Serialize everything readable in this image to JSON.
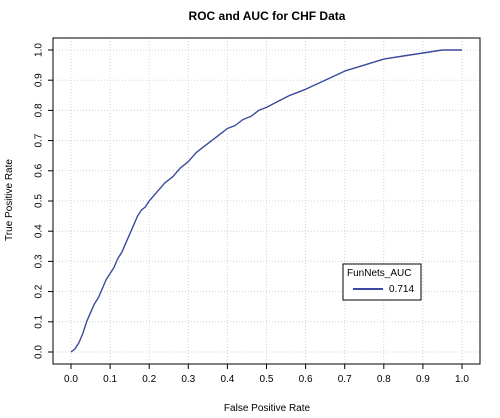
{
  "chart_data": {
    "type": "line",
    "title": "ROC and AUC for CHF Data",
    "xlabel": "False Positive Rate",
    "ylabel": "True Positive Rate",
    "xlim": [
      0.0,
      1.0
    ],
    "ylim": [
      0.0,
      1.0
    ],
    "x_ticks": [
      "0.0",
      "0.1",
      "0.2",
      "0.3",
      "0.4",
      "0.5",
      "0.6",
      "0.7",
      "0.8",
      "0.9",
      "1.0"
    ],
    "y_ticks": [
      "0.0",
      "0.1",
      "0.2",
      "0.3",
      "0.4",
      "0.5",
      "0.6",
      "0.7",
      "0.8",
      "0.9",
      "1.0"
    ],
    "grid": true,
    "legend": {
      "title": "FunNets_AUC",
      "position": "bottom-right",
      "entries": [
        {
          "label": "0.714"
        }
      ]
    },
    "colors": {
      "line": "#3a4a9c",
      "grid": "#d3d3d3",
      "axis": "#000000"
    },
    "series": [
      {
        "x": [
          0.0,
          0.01,
          0.02,
          0.03,
          0.04,
          0.05,
          0.06,
          0.07,
          0.08,
          0.09,
          0.1,
          0.11,
          0.12,
          0.13,
          0.14,
          0.15,
          0.16,
          0.17,
          0.18,
          0.19,
          0.2,
          0.22,
          0.24,
          0.26,
          0.28,
          0.3,
          0.32,
          0.34,
          0.36,
          0.38,
          0.4,
          0.42,
          0.44,
          0.46,
          0.48,
          0.5,
          0.53,
          0.56,
          0.6,
          0.65,
          0.7,
          0.75,
          0.8,
          0.85,
          0.9,
          0.95,
          1.0
        ],
        "y": [
          0.0,
          0.01,
          0.03,
          0.06,
          0.1,
          0.13,
          0.16,
          0.18,
          0.21,
          0.24,
          0.26,
          0.28,
          0.31,
          0.33,
          0.36,
          0.39,
          0.42,
          0.45,
          0.47,
          0.48,
          0.5,
          0.53,
          0.56,
          0.58,
          0.61,
          0.63,
          0.66,
          0.68,
          0.7,
          0.72,
          0.74,
          0.75,
          0.77,
          0.78,
          0.8,
          0.81,
          0.83,
          0.85,
          0.87,
          0.9,
          0.93,
          0.95,
          0.97,
          0.98,
          0.99,
          1.0,
          1.0
        ]
      }
    ]
  }
}
